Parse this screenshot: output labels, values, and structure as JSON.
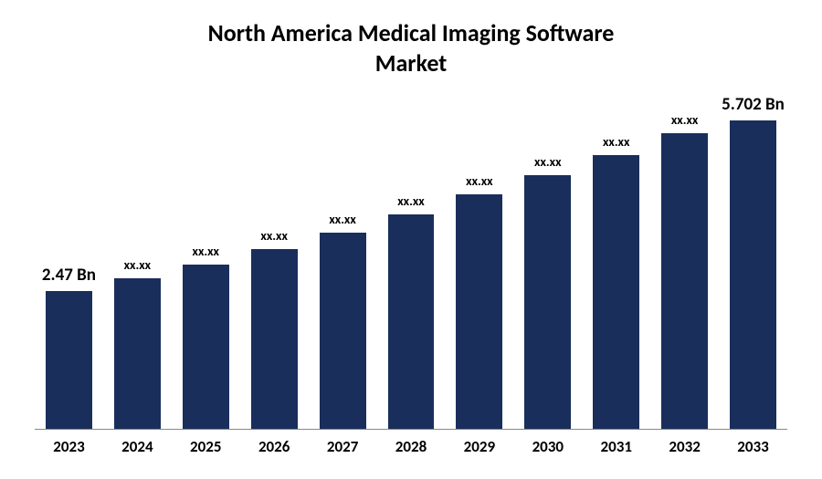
{
  "chart": {
    "type": "bar",
    "title_line1": "North America Medical Imaging Software",
    "title_line2": "Market",
    "title_fontsize": 26,
    "title_color": "#000000",
    "background_color": "#ffffff",
    "bar_color": "#1a2e5c",
    "axis_line_color": "#888888",
    "xaxis_label_fontsize": 17,
    "bar_label_fontsize_primary": 19,
    "bar_label_fontsize_secondary": 14,
    "bar_width_pct": 68,
    "ylim": [
      0,
      6.0
    ],
    "categories": [
      "2023",
      "2024",
      "2025",
      "2026",
      "2027",
      "2028",
      "2029",
      "2030",
      "2031",
      "2032",
      "2033"
    ],
    "values": [
      2.47,
      2.7,
      2.95,
      3.22,
      3.52,
      3.85,
      4.2,
      4.55,
      4.9,
      5.3,
      5.702
    ],
    "value_labels": [
      "2.47 Bn",
      "xx.xx",
      "xx.xx",
      "xx.xx",
      "xx.xx",
      "xx.xx",
      "xx.xx",
      "xx.xx",
      "xx.xx",
      "xx.xx",
      "5.702 Bn"
    ],
    "value_label_is_primary": [
      true,
      false,
      false,
      false,
      false,
      false,
      false,
      false,
      false,
      false,
      true
    ]
  }
}
